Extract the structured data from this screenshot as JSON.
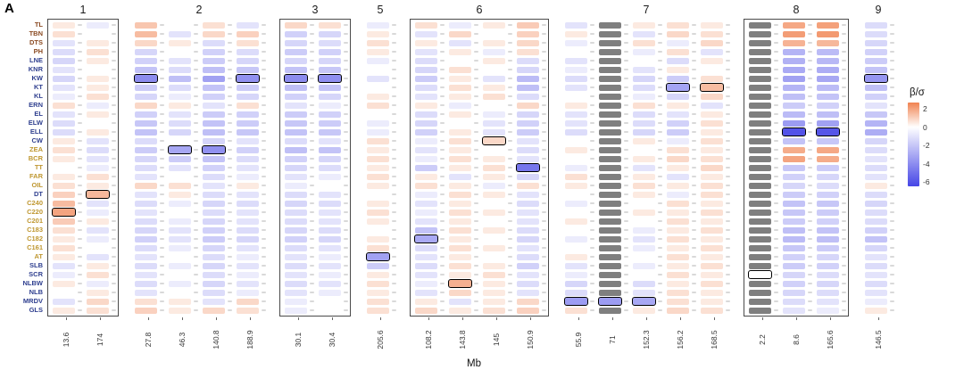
{
  "figure": {
    "label": "A"
  },
  "chart_data": {
    "type": "heatmap",
    "title": "",
    "xlabel": "Mb",
    "legend_title": "β/σ",
    "legend_position": "right",
    "colorbar_ticks": [
      2,
      0,
      -2,
      -4,
      -6
    ],
    "colorbar_domain": [
      2.7,
      -6.5
    ],
    "color_scale": {
      "positive_color": "#F08250",
      "positive_max": 2.5,
      "negative_color": "#4646E6",
      "negative_max": 6.2,
      "na_color": "#7F7F7F",
      "gamma": 0.55
    },
    "group_colors": {
      "brown": "#8A4A22",
      "navy": "#2F3F8F",
      "gold": "#BF9730"
    },
    "rows": [
      {
        "label": "TL",
        "group": "brown"
      },
      {
        "label": "TBN",
        "group": "brown"
      },
      {
        "label": "DTS",
        "group": "brown"
      },
      {
        "label": "PH",
        "group": "brown"
      },
      {
        "label": "LNE",
        "group": "navy"
      },
      {
        "label": "KNR",
        "group": "navy"
      },
      {
        "label": "KW",
        "group": "navy"
      },
      {
        "label": "KT",
        "group": "navy"
      },
      {
        "label": "KL",
        "group": "navy"
      },
      {
        "label": "ERN",
        "group": "navy"
      },
      {
        "label": "EL",
        "group": "navy"
      },
      {
        "label": "ELW",
        "group": "navy"
      },
      {
        "label": "ELL",
        "group": "navy"
      },
      {
        "label": "CW",
        "group": "navy"
      },
      {
        "label": "ZEA",
        "group": "gold"
      },
      {
        "label": "BCR",
        "group": "gold"
      },
      {
        "label": "TT",
        "group": "gold"
      },
      {
        "label": "FAR",
        "group": "gold"
      },
      {
        "label": "OIL",
        "group": "gold"
      },
      {
        "label": "DT",
        "group": "navy"
      },
      {
        "label": "C240",
        "group": "gold"
      },
      {
        "label": "C220",
        "group": "gold"
      },
      {
        "label": "C201",
        "group": "gold"
      },
      {
        "label": "C183",
        "group": "gold"
      },
      {
        "label": "C182",
        "group": "gold"
      },
      {
        "label": "C161",
        "group": "gold"
      },
      {
        "label": "AT",
        "group": "gold"
      },
      {
        "label": "SLB",
        "group": "navy"
      },
      {
        "label": "SCR",
        "group": "navy"
      },
      {
        "label": "NLBW",
        "group": "navy"
      },
      {
        "label": "NLB",
        "group": "navy"
      },
      {
        "label": "MRDV",
        "group": "navy"
      },
      {
        "label": "GLS",
        "group": "navy"
      }
    ],
    "panels": [
      {
        "label": "1",
        "boxed": true,
        "columns": [
          "13.6",
          "174"
        ]
      },
      {
        "label": "2",
        "boxed": false,
        "columns": [
          "27.8",
          "46.3",
          "140.8",
          "188.9"
        ]
      },
      {
        "label": "3",
        "boxed": true,
        "columns": [
          "30.1",
          "30.4"
        ]
      },
      {
        "label": "5",
        "boxed": false,
        "columns": [
          "205.6"
        ]
      },
      {
        "label": "6",
        "boxed": true,
        "columns": [
          "108.2",
          "143.8",
          "145",
          "150.9"
        ]
      },
      {
        "label": "7",
        "boxed": false,
        "columns": [
          "55.9",
          "71",
          "152.3",
          "156.2",
          "168.5"
        ]
      },
      {
        "label": "8",
        "boxed": true,
        "columns": [
          "2.2",
          "8.6",
          "165.6"
        ]
      },
      {
        "label": "9",
        "boxed": false,
        "columns": [
          "146.5"
        ]
      }
    ],
    "values": [
      [
        0.1,
        -0.1,
        0.6,
        0.0,
        0.2,
        -0.2,
        0.3,
        0.2,
        -0.1,
        0.2,
        -0.1,
        0.1,
        0.5,
        -0.2,
        null,
        0.1,
        0.2,
        0.1,
        null,
        1.3,
        1.5,
        -0.3
      ],
      [
        0.2,
        0.0,
        0.8,
        -0.2,
        0.3,
        0.4,
        -0.5,
        -0.4,
        0.1,
        -0.2,
        0.3,
        0.0,
        0.4,
        0.1,
        null,
        -0.2,
        0.3,
        0.2,
        null,
        1.6,
        1.7,
        -0.3
      ],
      [
        -0.2,
        0.1,
        0.3,
        0.1,
        -0.3,
        0.2,
        -0.4,
        -0.3,
        0.2,
        0.1,
        -0.2,
        0.1,
        0.3,
        -0.1,
        null,
        0.2,
        -0.1,
        0.3,
        null,
        1.0,
        0.9,
        -0.4
      ],
      [
        -0.3,
        0.2,
        -0.4,
        0.0,
        -0.5,
        -0.3,
        -0.6,
        -0.5,
        0.1,
        -0.2,
        0.1,
        -0.1,
        0.2,
        0.0,
        null,
        -0.1,
        0.2,
        -0.2,
        null,
        -1.2,
        -1.0,
        -0.5
      ],
      [
        -0.4,
        0.1,
        -0.5,
        -0.2,
        -0.6,
        -0.4,
        -0.4,
        -0.4,
        -0.1,
        -0.3,
        0.0,
        0.1,
        -0.3,
        -0.2,
        null,
        0.0,
        -0.3,
        0.1,
        null,
        -1.3,
        -1.1,
        -0.6
      ],
      [
        -0.2,
        0.0,
        -0.8,
        -0.3,
        -0.9,
        -0.7,
        -0.8,
        -0.7,
        0.0,
        -0.4,
        0.2,
        0.0,
        -0.4,
        -0.1,
        null,
        -0.2,
        0.1,
        0.0,
        null,
        -1.5,
        -1.4,
        -0.8
      ],
      [
        -0.4,
        0.1,
        -2.6,
        -0.9,
        -1.8,
        -2.4,
        -2.6,
        -2.5,
        -0.2,
        -0.6,
        0.1,
        -0.2,
        -1.0,
        -0.3,
        null,
        -0.4,
        -0.6,
        0.2,
        null,
        -1.8,
        -1.6,
        -2.2
      ],
      [
        -0.2,
        0.1,
        -0.6,
        -0.3,
        -0.8,
        -0.6,
        -0.9,
        -0.8,
        0.0,
        -0.3,
        0.2,
        0.1,
        -0.9,
        -0.2,
        null,
        -0.3,
        -1.7,
        0.8,
        null,
        -1.2,
        -1.0,
        -0.9
      ],
      [
        -0.1,
        0.2,
        -0.4,
        -0.1,
        -0.5,
        -0.4,
        -0.5,
        -0.4,
        0.1,
        -0.2,
        0.1,
        0.2,
        -0.3,
        0.0,
        null,
        -0.1,
        -0.4,
        0.3,
        null,
        -0.9,
        -0.8,
        -0.5
      ],
      [
        0.2,
        -0.1,
        0.3,
        0.1,
        -0.2,
        0.2,
        -0.2,
        -0.1,
        0.2,
        0.1,
        -0.1,
        0.0,
        0.3,
        0.1,
        null,
        0.2,
        0.1,
        -0.2,
        null,
        -0.6,
        -0.5,
        -0.2
      ],
      [
        -0.2,
        0.1,
        -0.5,
        -0.2,
        -0.6,
        -0.5,
        -0.6,
        -0.5,
        0.0,
        -0.3,
        0.1,
        -0.1,
        -0.4,
        -0.2,
        null,
        -0.3,
        -0.2,
        0.1,
        null,
        -1.0,
        -0.9,
        -0.7
      ],
      [
        -0.3,
        0.0,
        -0.7,
        -0.3,
        -0.8,
        -0.6,
        -0.7,
        -0.6,
        -0.1,
        -0.4,
        0.0,
        -0.2,
        -0.5,
        -0.2,
        null,
        -0.3,
        -0.5,
        0.2,
        null,
        -2.0,
        -1.8,
        -1.2
      ],
      [
        -0.3,
        0.1,
        -0.8,
        -0.4,
        -0.9,
        -0.7,
        -0.8,
        -0.7,
        -0.1,
        -0.5,
        0.1,
        -0.2,
        -0.6,
        -0.3,
        null,
        -0.4,
        -0.6,
        0.1,
        null,
        -5.5,
        -5.3,
        -1.4
      ],
      [
        0.1,
        -0.2,
        -0.3,
        0.0,
        -0.4,
        -0.2,
        -0.3,
        -0.2,
        0.2,
        -0.1,
        0.2,
        0.3,
        -0.2,
        0.0,
        null,
        0.1,
        -0.1,
        0.2,
        null,
        -0.8,
        -0.7,
        -0.4
      ],
      [
        0.2,
        -0.3,
        -0.6,
        -1.6,
        -2.4,
        -0.5,
        -0.9,
        -0.8,
        0.1,
        -0.2,
        0.1,
        0.0,
        -0.3,
        0.1,
        null,
        0.0,
        0.2,
        0.1,
        null,
        1.2,
        1.3,
        -0.3
      ],
      [
        0.1,
        -0.2,
        -0.4,
        -0.6,
        -0.8,
        -0.3,
        -0.5,
        -0.4,
        0.2,
        -0.1,
        0.2,
        0.1,
        -0.2,
        0.0,
        null,
        0.1,
        0.3,
        0.2,
        null,
        1.4,
        1.2,
        -0.2
      ],
      [
        0.0,
        -0.1,
        -0.3,
        -0.2,
        -0.5,
        -0.2,
        -0.4,
        -0.3,
        0.1,
        -0.6,
        0.1,
        0.2,
        -3.6,
        -0.1,
        null,
        -0.2,
        0.1,
        0.3,
        null,
        -0.7,
        -0.6,
        -0.3
      ],
      [
        0.1,
        0.2,
        -0.2,
        0.0,
        -0.3,
        -0.1,
        -0.2,
        -0.1,
        0.2,
        0.1,
        -0.2,
        0.1,
        -0.4,
        0.2,
        null,
        0.1,
        -0.2,
        0.1,
        null,
        -0.5,
        -0.4,
        -0.2
      ],
      [
        0.2,
        0.1,
        0.3,
        0.2,
        -0.2,
        0.1,
        -0.1,
        0.0,
        0.1,
        0.2,
        0.1,
        -0.1,
        0.2,
        0.1,
        null,
        0.2,
        0.1,
        0.2,
        null,
        -0.4,
        -0.3,
        0.1
      ],
      [
        0.4,
        0.9,
        -0.2,
        0.1,
        -0.3,
        -0.2,
        -0.3,
        -0.2,
        0.0,
        -0.1,
        0.2,
        0.1,
        -0.2,
        0.0,
        null,
        0.1,
        -0.1,
        0.2,
        null,
        -0.6,
        -0.5,
        -0.3
      ],
      [
        0.8,
        -0.2,
        -0.3,
        -0.1,
        -0.4,
        -0.3,
        -0.4,
        -0.3,
        0.1,
        -0.2,
        0.1,
        0.0,
        -0.3,
        -0.1,
        null,
        0.0,
        0.2,
        0.1,
        null,
        -0.8,
        -0.7,
        -0.4
      ],
      [
        1.4,
        -0.1,
        -0.2,
        0.0,
        -0.3,
        -0.2,
        -0.3,
        -0.2,
        0.2,
        -0.1,
        0.2,
        0.1,
        -0.2,
        0.0,
        null,
        0.1,
        0.1,
        0.2,
        null,
        -0.7,
        -0.6,
        -0.3
      ],
      [
        0.5,
        0.1,
        -0.3,
        -0.1,
        -0.4,
        -0.2,
        -0.3,
        -0.2,
        0.1,
        -0.2,
        0.1,
        0.0,
        -0.2,
        0.1,
        null,
        0.0,
        0.2,
        0.1,
        null,
        -0.6,
        -0.5,
        -0.3
      ],
      [
        0.2,
        -0.2,
        -0.4,
        -0.2,
        -0.5,
        -0.3,
        -0.4,
        -0.3,
        0.0,
        -0.8,
        0.2,
        0.1,
        -0.3,
        0.0,
        null,
        -0.1,
        0.1,
        0.2,
        null,
        -0.9,
        -0.8,
        -0.5
      ],
      [
        0.1,
        -0.1,
        -0.5,
        -0.2,
        -0.6,
        -0.4,
        -0.5,
        -0.4,
        0.1,
        -1.5,
        0.1,
        0.0,
        -0.4,
        -0.1,
        null,
        -0.2,
        0.2,
        0.1,
        null,
        -1.0,
        -0.9,
        -0.8
      ],
      [
        0.2,
        0.0,
        -0.3,
        -0.1,
        -0.4,
        -0.2,
        -0.3,
        -0.2,
        0.2,
        -0.3,
        0.2,
        0.1,
        -0.2,
        0.0,
        null,
        -0.1,
        0.1,
        0.2,
        null,
        -0.7,
        -0.6,
        -0.4
      ],
      [
        0.1,
        -0.2,
        -0.2,
        0.0,
        -0.3,
        -0.1,
        -0.2,
        -0.1,
        -1.8,
        -0.2,
        0.1,
        0.0,
        -0.3,
        0.1,
        null,
        0.0,
        0.2,
        0.1,
        null,
        -0.5,
        -0.4,
        -0.2
      ],
      [
        -0.2,
        0.1,
        -0.3,
        -0.1,
        -0.4,
        -0.2,
        -0.3,
        -0.2,
        -0.6,
        -0.3,
        0.2,
        0.1,
        -0.5,
        -0.2,
        null,
        -0.1,
        0.1,
        0.2,
        null,
        -0.6,
        -0.5,
        -0.3
      ],
      [
        -0.1,
        0.2,
        -0.2,
        0.0,
        -0.3,
        -0.1,
        -0.2,
        -0.1,
        0.1,
        -0.2,
        0.1,
        0.2,
        -0.2,
        -0.1,
        null,
        0.0,
        0.2,
        0.1,
        0.0,
        -0.4,
        -0.3,
        -0.2
      ],
      [
        0.1,
        -0.1,
        -0.3,
        -0.1,
        -0.4,
        -0.2,
        -0.3,
        -0.2,
        0.2,
        -0.1,
        1.1,
        0.1,
        -0.3,
        -0.4,
        null,
        -0.3,
        0.1,
        0.2,
        null,
        -0.5,
        -0.4,
        -0.3
      ],
      [
        0.0,
        0.1,
        -0.2,
        0.0,
        -0.3,
        -0.1,
        -0.2,
        -0.1,
        0.1,
        -0.2,
        0.3,
        0.1,
        -0.2,
        -0.3,
        null,
        -0.2,
        0.2,
        0.1,
        null,
        -0.4,
        -0.3,
        -0.2
      ],
      [
        -0.2,
        0.3,
        0.2,
        0.1,
        -0.2,
        0.3,
        -0.1,
        0.0,
        0.2,
        0.1,
        -0.2,
        0.1,
        0.3,
        -2.0,
        -2.0,
        -1.6,
        0.2,
        0.1,
        null,
        -0.3,
        -0.2,
        -0.1
      ],
      [
        0.1,
        0.2,
        0.4,
        0.1,
        0.3,
        0.2,
        -0.1,
        0.0,
        0.2,
        0.3,
        0.1,
        0.2,
        0.4,
        0.2,
        null,
        0.1,
        0.3,
        0.2,
        null,
        -0.2,
        -0.1,
        0.1
      ]
    ],
    "highlights": [
      [
        21,
        0
      ],
      [
        19,
        1
      ],
      [
        6,
        2
      ],
      [
        14,
        3
      ],
      [
        14,
        4
      ],
      [
        6,
        5
      ],
      [
        6,
        6
      ],
      [
        6,
        7
      ],
      [
        26,
        8
      ],
      [
        24,
        9
      ],
      [
        29,
        10
      ],
      [
        13,
        11
      ],
      [
        16,
        12
      ],
      [
        31,
        13
      ],
      [
        31,
        14
      ],
      [
        31,
        15
      ],
      [
        7,
        16
      ],
      [
        7,
        17
      ],
      [
        28,
        18
      ],
      [
        12,
        19
      ],
      [
        12,
        20
      ],
      [
        6,
        21
      ]
    ]
  }
}
